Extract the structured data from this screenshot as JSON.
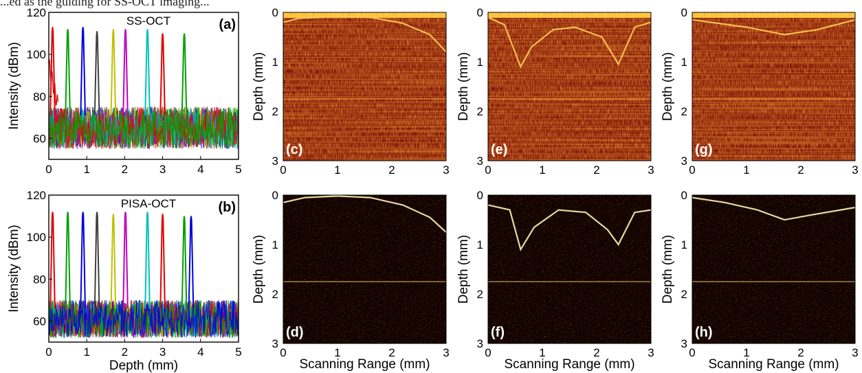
{
  "figure": {
    "top_caption_fragment": "...ed as the guiding for SS-OCT imaging...",
    "spectra_panels": [
      {
        "id": "a",
        "label": "(a)",
        "title": "SS-OCT",
        "ylabel": "Intensity (dBm)",
        "xlabel": ""
      },
      {
        "id": "b",
        "label": "(b)",
        "title": "PISA-OCT",
        "ylabel": "Intensity (dBm)",
        "xlabel": "Depth (mm)"
      }
    ],
    "image_panels": [
      {
        "id": "c",
        "label": "(c)",
        "ylabel": "Depth (mm)",
        "xlabel": ""
      },
      {
        "id": "e",
        "label": "(e)",
        "ylabel": "Depth (mm)",
        "xlabel": ""
      },
      {
        "id": "g",
        "label": "(g)",
        "ylabel": "Depth (mm)",
        "xlabel": ""
      },
      {
        "id": "d",
        "label": "(d)",
        "ylabel": "Depth (mm)",
        "xlabel": "Scanning Range (mm)"
      },
      {
        "id": "f",
        "label": "(f)",
        "ylabel": "Depth (mm)",
        "xlabel": "Scanning Range (mm)"
      },
      {
        "id": "h",
        "label": "(h)",
        "ylabel": "Depth (mm)",
        "xlabel": "Scanning Range (mm)"
      }
    ]
  },
  "chart_data": [
    {
      "type": "line",
      "panel": "a",
      "title": "SS-OCT",
      "xlabel": "",
      "ylabel": "Intensity (dBm)",
      "xlim": [
        0,
        5
      ],
      "ylim": [
        50,
        120
      ],
      "xticks": [
        0,
        1,
        2,
        3,
        4,
        5
      ],
      "yticks": [
        60,
        80,
        100,
        120
      ],
      "peak_positions_mm": [
        0.1,
        0.5,
        0.9,
        1.27,
        1.7,
        2.02,
        2.6,
        3.0,
        3.57
      ],
      "peak_heights_dBm": [
        113,
        112,
        113,
        111,
        112,
        112,
        112,
        110,
        110
      ],
      "peak_colors": [
        "#e00000",
        "#00a000",
        "#0000e0",
        "#404040",
        "#c0c000",
        "#c000c0",
        "#00c0c0",
        "#e00000",
        "#00a000"
      ],
      "noise_floor_range_dBm": [
        55,
        75
      ]
    },
    {
      "type": "line",
      "panel": "b",
      "title": "PISA-OCT",
      "xlabel": "Depth (mm)",
      "ylabel": "Intensity (dBm)",
      "xlim": [
        0,
        5
      ],
      "ylim": [
        50,
        120
      ],
      "xticks": [
        0,
        1,
        2,
        3,
        4,
        5
      ],
      "yticks": [
        60,
        80,
        100,
        120
      ],
      "peak_positions_mm": [
        0.1,
        0.5,
        0.9,
        1.27,
        1.7,
        2.02,
        2.6,
        3.0,
        3.57,
        3.75
      ],
      "peak_heights_dBm": [
        112,
        112,
        112,
        112,
        111,
        112,
        112,
        111,
        110,
        110
      ],
      "peak_colors": [
        "#e00000",
        "#00a000",
        "#0000e0",
        "#404040",
        "#c0c000",
        "#c000c0",
        "#00c0c0",
        "#e00000",
        "#00a000",
        "#0000e0"
      ],
      "noise_floor_range_dBm": [
        52,
        70
      ]
    },
    {
      "type": "heatmap",
      "panel": "c",
      "xlabel": "",
      "ylabel": "Depth (mm)",
      "xlim": [
        0,
        3
      ],
      "ylim": [
        0,
        3
      ],
      "xticks": [
        0,
        1,
        2,
        3
      ],
      "yticks": [
        0,
        1,
        2,
        3
      ]
    },
    {
      "type": "heatmap",
      "panel": "e",
      "xlabel": "",
      "ylabel": "Depth (mm)",
      "xlim": [
        0,
        3
      ],
      "ylim": [
        0,
        3
      ],
      "xticks": [
        0,
        1,
        2,
        3
      ],
      "yticks": [
        0,
        1,
        2,
        3
      ]
    },
    {
      "type": "heatmap",
      "panel": "g",
      "xlabel": "",
      "ylabel": "Depth (mm)",
      "xlim": [
        0,
        3
      ],
      "ylim": [
        0,
        3
      ],
      "xticks": [
        0,
        1,
        2,
        3
      ],
      "yticks": [
        0,
        1,
        2,
        3
      ]
    },
    {
      "type": "heatmap",
      "panel": "d",
      "xlabel": "Scanning Range (mm)",
      "ylabel": "Depth (mm)",
      "xlim": [
        0,
        3
      ],
      "ylim": [
        0,
        3
      ],
      "xticks": [
        0,
        1,
        2,
        3
      ],
      "yticks": [
        0,
        1,
        2,
        3
      ]
    },
    {
      "type": "heatmap",
      "panel": "f",
      "xlabel": "Scanning Range (mm)",
      "ylabel": "Depth (mm)",
      "xlim": [
        0,
        3
      ],
      "ylim": [
        0,
        3
      ],
      "xticks": [
        0,
        1,
        2,
        3
      ],
      "yticks": [
        0,
        1,
        2,
        3
      ]
    },
    {
      "type": "heatmap",
      "panel": "h",
      "xlabel": "Scanning Range (mm)",
      "ylabel": "Depth (mm)",
      "xlim": [
        0,
        3
      ],
      "ylim": [
        0,
        3
      ],
      "xticks": [
        0,
        1,
        2,
        3
      ],
      "yticks": [
        0,
        1,
        2,
        3
      ]
    }
  ]
}
